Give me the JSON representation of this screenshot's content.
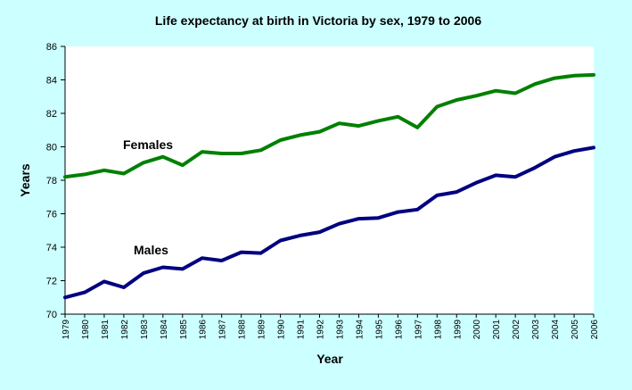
{
  "chart_data": {
    "type": "line",
    "title": "Life expectancy at birth in Victoria by sex, 1979 to 2006",
    "xlabel": "Year",
    "ylabel": "Years",
    "ylim": [
      70,
      86
    ],
    "yticks": [
      70,
      72,
      74,
      76,
      78,
      80,
      82,
      84,
      86
    ],
    "grid": false,
    "legend": "inline labels",
    "x": [
      1979,
      1980,
      1981,
      1982,
      1983,
      1984,
      1985,
      1986,
      1987,
      1988,
      1989,
      1990,
      1991,
      1992,
      1993,
      1994,
      1995,
      1996,
      1997,
      1998,
      1999,
      2000,
      2001,
      2002,
      2003,
      2004,
      2005,
      2006
    ],
    "series": [
      {
        "name": "Females",
        "color": "#008000",
        "values": [
          78.2,
          78.35,
          78.6,
          78.4,
          79.05,
          79.4,
          78.9,
          79.7,
          79.6,
          79.6,
          79.8,
          80.4,
          80.7,
          80.9,
          81.4,
          81.25,
          81.55,
          81.8,
          81.15,
          82.4,
          82.8,
          83.05,
          83.35,
          83.2,
          83.75,
          84.1,
          84.25,
          84.3
        ]
      },
      {
        "name": "Males",
        "color": "#000080",
        "values": [
          71.0,
          71.3,
          71.95,
          71.6,
          72.45,
          72.8,
          72.7,
          73.35,
          73.2,
          73.7,
          73.65,
          74.4,
          74.7,
          74.9,
          75.4,
          75.7,
          75.75,
          76.1,
          76.25,
          77.1,
          77.3,
          77.85,
          78.3,
          78.2,
          78.75,
          79.4,
          79.75,
          79.95
        ]
      }
    ]
  }
}
